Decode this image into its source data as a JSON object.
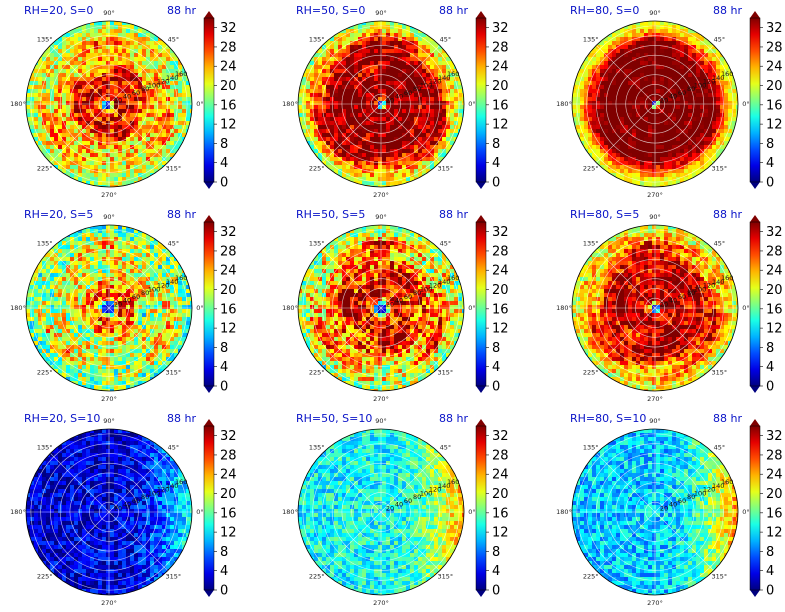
{
  "figure": {
    "colormap": "jet",
    "colorbar": {
      "ticks": [
        "0",
        "4",
        "8",
        "12",
        "16",
        "20",
        "24",
        "28",
        "32"
      ],
      "min": 0,
      "max": 34,
      "extend": "both"
    },
    "angle_ticks": [
      "0°",
      "45°",
      "90°",
      "135°",
      "180°",
      "225°",
      "270°",
      "315°"
    ],
    "radial_ticks": [
      "20",
      "40",
      "60",
      "80",
      "100",
      "120",
      "140",
      "160"
    ],
    "radial_max": 170
  },
  "chart_data": [
    {
      "type": "heatmap",
      "title": "RH=20, S=0",
      "time_label": "88 hr",
      "rh": 20,
      "s": 0,
      "profile": {
        "eye_radius": 7,
        "eye_x": -3,
        "eye_y": -3,
        "core": 30,
        "core_radius": 80,
        "outer": 23,
        "edge": 18,
        "noise": 6,
        "band_amplitude": 3
      }
    },
    {
      "type": "heatmap",
      "title": "RH=50, S=0",
      "time_label": "88 hr",
      "rh": 50,
      "s": 0,
      "profile": {
        "eye_radius": 6,
        "eye_x": 0,
        "eye_y": 0,
        "core": 34,
        "core_radius": 125,
        "outer": 28,
        "edge": 18,
        "noise": 5,
        "band_amplitude": 4
      }
    },
    {
      "type": "heatmap",
      "title": "RH=80, S=0",
      "time_label": "88 hr",
      "rh": 80,
      "s": 0,
      "profile": {
        "eye_radius": 5,
        "eye_x": 0,
        "eye_y": 0,
        "core": 35,
        "core_radius": 140,
        "outer": 27,
        "edge": 20,
        "noise": 3,
        "band_amplitude": 2
      }
    },
    {
      "type": "heatmap",
      "title": "RH=20, S=5",
      "time_label": "88 hr",
      "rh": 20,
      "s": 5,
      "profile": {
        "eye_radius": 10,
        "eye_x": -2,
        "eye_y": 0,
        "core": 26,
        "core_radius": 60,
        "outer": 20,
        "edge": 16,
        "noise": 7,
        "band_amplitude": 4
      }
    },
    {
      "type": "heatmap",
      "title": "RH=50, S=5",
      "time_label": "88 hr",
      "rh": 50,
      "s": 5,
      "profile": {
        "eye_radius": 10,
        "eye_x": 0,
        "eye_y": -2,
        "core": 30,
        "core_radius": 95,
        "outer": 24,
        "edge": 18,
        "noise": 7,
        "band_amplitude": 5
      }
    },
    {
      "type": "heatmap",
      "title": "RH=80, S=5",
      "time_label": "88 hr",
      "rh": 80,
      "s": 5,
      "profile": {
        "eye_radius": 7,
        "eye_x": 0,
        "eye_y": 0,
        "core": 32,
        "core_radius": 115,
        "outer": 26,
        "edge": 20,
        "noise": 5,
        "band_amplitude": 4
      }
    },
    {
      "type": "heatmap",
      "title": "RH=20, S=10",
      "time_label": "88 hr",
      "rh": 20,
      "s": 10,
      "profile": {
        "base": 3,
        "east_bias": 7,
        "noise": 4
      }
    },
    {
      "type": "heatmap",
      "title": "RH=50, S=10",
      "time_label": "88 hr",
      "rh": 50,
      "s": 10,
      "profile": {
        "base": 13,
        "east_bias": 7,
        "noise": 4
      }
    },
    {
      "type": "heatmap",
      "title": "RH=80, S=10",
      "time_label": "88 hr",
      "rh": 80,
      "s": 10,
      "profile": {
        "base": 11,
        "east_bias": 9,
        "noise": 4
      }
    }
  ]
}
